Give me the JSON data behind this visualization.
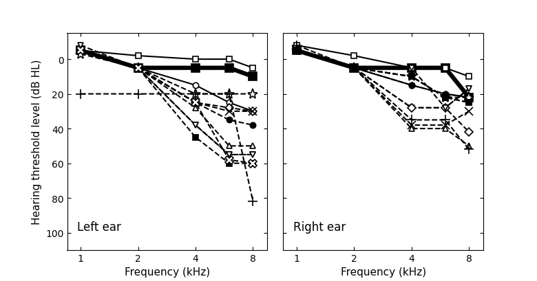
{
  "freqs": [
    1,
    2,
    4,
    6,
    8
  ],
  "left_ear": {
    "series": [
      {
        "marker": "s",
        "filled": true,
        "linestyle": "-",
        "lw": 4.5,
        "data": [
          -5,
          5,
          5,
          5,
          10
        ]
      },
      {
        "marker": "s",
        "filled": false,
        "linestyle": "-",
        "lw": 1.5,
        "data": [
          -5,
          -2,
          0,
          0,
          5
        ]
      },
      {
        "marker": "o",
        "filled": false,
        "linestyle": "-",
        "lw": 1.5,
        "data": [
          -5,
          5,
          15,
          25,
          30
        ]
      },
      {
        "marker": "o",
        "filled": true,
        "linestyle": "--",
        "lw": 1.5,
        "data": [
          -5,
          5,
          25,
          35,
          38
        ]
      },
      {
        "marker": "^",
        "filled": false,
        "linestyle": "--",
        "lw": 1.5,
        "data": [
          -5,
          5,
          28,
          50,
          50
        ]
      },
      {
        "marker": "v",
        "filled": false,
        "linestyle": "--",
        "lw": 1.5,
        "data": [
          -5,
          5,
          38,
          55,
          55
        ]
      },
      {
        "marker": "D",
        "filled": false,
        "linestyle": "--",
        "lw": 1.5,
        "data": [
          -5,
          5,
          25,
          28,
          30
        ]
      },
      {
        "marker": "x",
        "filled": false,
        "linestyle": "--",
        "lw": 1.5,
        "data": [
          -5,
          5,
          25,
          30,
          30
        ]
      },
      {
        "marker": "*",
        "filled": false,
        "linestyle": "--",
        "lw": 1.5,
        "data": [
          -3,
          5,
          20,
          20,
          20
        ]
      },
      {
        "marker": "+",
        "filled": false,
        "linestyle": "--",
        "lw": 1.5,
        "data": [
          20,
          20,
          20,
          20,
          82
        ]
      },
      {
        "marker": "s",
        "filled": true,
        "linestyle": "--",
        "lw": 1.5,
        "data": [
          -5,
          5,
          45,
          60,
          60
        ]
      },
      {
        "marker": "v",
        "filled": false,
        "linestyle": "--",
        "lw": 1.5,
        "data": [
          -8,
          5,
          38,
          55,
          55
        ]
      },
      {
        "marker": "X",
        "filled": false,
        "linestyle": "--",
        "lw": 1.5,
        "data": [
          -5,
          5,
          25,
          58,
          60
        ]
      }
    ]
  },
  "right_ear": {
    "series": [
      {
        "marker": "s",
        "filled": true,
        "linestyle": "-",
        "lw": 4.5,
        "data": [
          -5,
          5,
          5,
          5,
          22
        ]
      },
      {
        "marker": "s",
        "filled": false,
        "linestyle": "-",
        "lw": 1.5,
        "data": [
          -8,
          -2,
          5,
          5,
          10
        ]
      },
      {
        "marker": "o",
        "filled": false,
        "linestyle": "-",
        "lw": 1.5,
        "data": [
          -5,
          5,
          15,
          20,
          22
        ]
      },
      {
        "marker": "o",
        "filled": true,
        "linestyle": "--",
        "lw": 1.5,
        "data": [
          -5,
          5,
          15,
          20,
          22
        ]
      },
      {
        "marker": "^",
        "filled": false,
        "linestyle": "--",
        "lw": 1.5,
        "data": [
          -5,
          5,
          40,
          40,
          50
        ]
      },
      {
        "marker": "v",
        "filled": false,
        "linestyle": "--",
        "lw": 1.5,
        "data": [
          -5,
          5,
          28,
          28,
          17
        ]
      },
      {
        "marker": "D",
        "filled": false,
        "linestyle": "--",
        "lw": 1.5,
        "data": [
          -5,
          5,
          28,
          28,
          42
        ]
      },
      {
        "marker": "x",
        "filled": false,
        "linestyle": "--",
        "lw": 1.5,
        "data": [
          -5,
          5,
          38,
          38,
          30
        ]
      },
      {
        "marker": "*",
        "filled": false,
        "linestyle": "--",
        "lw": 1.5,
        "data": [
          -5,
          5,
          10,
          22,
          22
        ]
      },
      {
        "marker": "+",
        "filled": false,
        "linestyle": "--",
        "lw": 1.5,
        "data": [
          -8,
          5,
          35,
          35,
          52
        ]
      },
      {
        "marker": "s",
        "filled": false,
        "linestyle": "--",
        "lw": 1.5,
        "data": [
          -5,
          5,
          10,
          22,
          25
        ]
      },
      {
        "marker": "v",
        "filled": false,
        "linestyle": "--",
        "lw": 1.5,
        "data": [
          -5,
          5,
          5,
          28,
          17
        ]
      },
      {
        "marker": "s",
        "filled": true,
        "linestyle": "--",
        "lw": 1.5,
        "data": [
          -5,
          5,
          10,
          22,
          25
        ]
      }
    ]
  },
  "ylim_bottom": 110,
  "ylim_top": -15,
  "yticks": [
    0,
    20,
    40,
    60,
    80,
    100
  ],
  "xlabel": "Frequency (kHz)",
  "ylabel": "Hearing threshold level (dB HL)",
  "left_label": "Left ear",
  "right_label": "Right ear",
  "xticklabels": [
    "1",
    "2",
    "4",
    "8"
  ],
  "xtick_positions": [
    1,
    2,
    4,
    8
  ]
}
